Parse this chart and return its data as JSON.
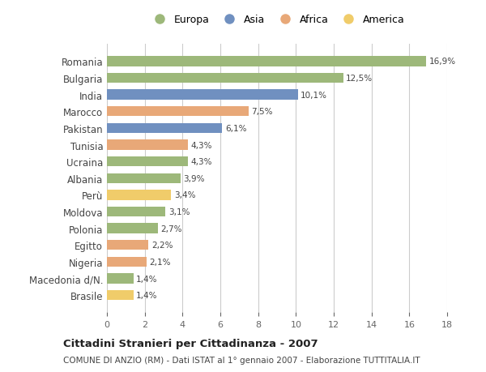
{
  "countries": [
    "Romania",
    "Bulgaria",
    "India",
    "Marocco",
    "Pakistan",
    "Tunisia",
    "Ucraina",
    "Albania",
    "Perù",
    "Moldova",
    "Polonia",
    "Egitto",
    "Nigeria",
    "Macedonia d/N.",
    "Brasile"
  ],
  "values": [
    16.9,
    12.5,
    10.1,
    7.5,
    6.1,
    4.3,
    4.3,
    3.9,
    3.4,
    3.1,
    2.7,
    2.2,
    2.1,
    1.4,
    1.4
  ],
  "continents": [
    "Europa",
    "Europa",
    "Asia",
    "Africa",
    "Asia",
    "Africa",
    "Europa",
    "Europa",
    "America",
    "Europa",
    "Europa",
    "Africa",
    "Africa",
    "Europa",
    "America"
  ],
  "colors": {
    "Europa": "#9db87a",
    "Asia": "#7090c0",
    "Africa": "#e8a878",
    "America": "#f0cc6a"
  },
  "legend_order": [
    "Europa",
    "Asia",
    "Africa",
    "America"
  ],
  "xlim": [
    0,
    18
  ],
  "xticks": [
    0,
    2,
    4,
    6,
    8,
    10,
    12,
    14,
    16,
    18
  ],
  "title": "Cittadini Stranieri per Cittadinanza - 2007",
  "subtitle": "COMUNE DI ANZIO (RM) - Dati ISTAT al 1° gennaio 2007 - Elaborazione TUTTITALIA.IT",
  "bg_color": "#ffffff",
  "grid_color": "#cccccc",
  "bar_height": 0.6
}
